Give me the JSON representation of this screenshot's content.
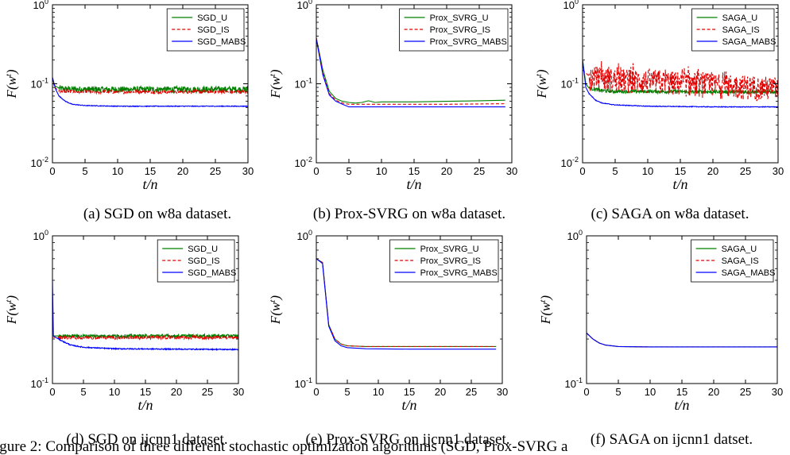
{
  "figure_caption": "igure 2: Comparison of three different stochastic optimization algorithms (SGD, Prox-SVRG a",
  "colors": {
    "U": "#008000",
    "IS": "#e00000",
    "MABS": "#0000ff",
    "axis": "#000000"
  },
  "chart_data": [
    {
      "type": "line",
      "caption": "(a) SGD on w8a dataset.",
      "xlabel": "t/n",
      "ylabel": "F(w^t)",
      "ylabel_main": "F(w",
      "ylabel_sup": "t",
      "ylabel_close": ")",
      "xlabel_text": "t/n",
      "yscale": "log",
      "xlim": [
        0,
        30
      ],
      "ylim": [
        0.01,
        1
      ],
      "xticks": [
        "0",
        "5",
        "10",
        "15",
        "20",
        "25",
        "30"
      ],
      "yticks": [
        {
          "base": "10",
          "exp": "-2"
        },
        {
          "base": "10",
          "exp": "-1"
        },
        {
          "base": "10",
          "exp": "0"
        }
      ],
      "legend": "top-right",
      "series": [
        {
          "name": "SGD_U",
          "key": "U",
          "style": "solid",
          "points": [
            [
              0,
              0.12
            ],
            [
              0.3,
              0.095
            ],
            [
              1,
              0.088
            ],
            [
              2,
              0.086
            ],
            [
              5,
              0.085
            ],
            [
              10,
              0.085
            ],
            [
              20,
              0.085
            ],
            [
              30,
              0.085
            ]
          ],
          "noise": 0.09
        },
        {
          "name": "SGD_IS",
          "key": "IS",
          "style": "dashed",
          "points": [
            [
              0,
              0.12
            ],
            [
              0.3,
              0.09
            ],
            [
              1,
              0.082
            ],
            [
              2,
              0.08
            ],
            [
              5,
              0.079
            ],
            [
              10,
              0.079
            ],
            [
              20,
              0.079
            ],
            [
              30,
              0.079
            ]
          ],
          "noise": 0.05
        },
        {
          "name": "SGD_MABS",
          "key": "MABS",
          "style": "solid",
          "points": [
            [
              0,
              0.12
            ],
            [
              0.5,
              0.085
            ],
            [
              1,
              0.07
            ],
            [
              2,
              0.06
            ],
            [
              3,
              0.055
            ],
            [
              5,
              0.053
            ],
            [
              10,
              0.052
            ],
            [
              20,
              0.052
            ],
            [
              30,
              0.052
            ]
          ],
          "noise": 0.01
        }
      ]
    },
    {
      "type": "line",
      "caption": "(b) Prox-SVRG on w8a dataset.",
      "xlabel": "t/n",
      "ylabel": "F(w^t)",
      "ylabel_main": "F(w",
      "ylabel_sup": "t",
      "ylabel_close": ")",
      "xlabel_text": "t/n",
      "yscale": "log",
      "xlim": [
        0,
        30
      ],
      "ylim": [
        0.01,
        1
      ],
      "xticks": [
        "0",
        "5",
        "10",
        "15",
        "20",
        "25",
        "30"
      ],
      "yticks": [
        {
          "base": "10",
          "exp": "-2"
        },
        {
          "base": "10",
          "exp": "-1"
        },
        {
          "base": "10",
          "exp": "0"
        }
      ],
      "legend": "top-right",
      "series": [
        {
          "name": "Prox_SVRG_U",
          "key": "U",
          "style": "solid",
          "points": [
            [
              0,
              0.38
            ],
            [
              1,
              0.15
            ],
            [
              2,
              0.08
            ],
            [
              3,
              0.065
            ],
            [
              4,
              0.06
            ],
            [
              5,
              0.058
            ],
            [
              6,
              0.057
            ],
            [
              7,
              0.058
            ],
            [
              8,
              0.061
            ],
            [
              9,
              0.058
            ],
            [
              10,
              0.059
            ],
            [
              15,
              0.059
            ],
            [
              20,
              0.06
            ],
            [
              25,
              0.061
            ],
            [
              29,
              0.062
            ]
          ],
          "noise": 0
        },
        {
          "name": "Prox_SVRG_IS",
          "key": "IS",
          "style": "dashed",
          "points": [
            [
              0,
              0.38
            ],
            [
              1,
              0.14
            ],
            [
              2,
              0.075
            ],
            [
              3,
              0.062
            ],
            [
              4,
              0.057
            ],
            [
              5,
              0.055
            ],
            [
              10,
              0.055
            ],
            [
              20,
              0.055
            ],
            [
              29,
              0.056
            ]
          ],
          "noise": 0
        },
        {
          "name": "Prox_SVRG_MABS",
          "key": "MABS",
          "style": "solid",
          "points": [
            [
              0,
              0.37
            ],
            [
              1,
              0.13
            ],
            [
              2,
              0.072
            ],
            [
              3,
              0.06
            ],
            [
              4,
              0.055
            ],
            [
              5,
              0.051
            ],
            [
              10,
              0.051
            ],
            [
              20,
              0.051
            ],
            [
              29,
              0.051
            ]
          ],
          "noise": 0
        }
      ]
    },
    {
      "type": "line",
      "caption": "(c) SAGA on w8a dataset.",
      "xlabel": "t/n",
      "ylabel": "F(w^t)",
      "ylabel_main": "F(w",
      "ylabel_sup": "t",
      "ylabel_close": ")",
      "xlabel_text": "t/n",
      "yscale": "log",
      "xlim": [
        0,
        30
      ],
      "ylim": [
        0.01,
        1
      ],
      "xticks": [
        "0",
        "5",
        "10",
        "15",
        "20",
        "25",
        "30"
      ],
      "yticks": [
        {
          "base": "10",
          "exp": "-2"
        },
        {
          "base": "10",
          "exp": "-1"
        },
        {
          "base": "10",
          "exp": "0"
        }
      ],
      "legend": "top-right",
      "series": [
        {
          "name": "SAGA_U",
          "key": "U",
          "style": "solid",
          "points": [
            [
              0,
              0.2
            ],
            [
              0.5,
              0.1
            ],
            [
              1,
              0.088
            ],
            [
              3,
              0.082
            ],
            [
              5,
              0.08
            ],
            [
              10,
              0.08
            ],
            [
              20,
              0.079
            ],
            [
              30,
              0.079
            ]
          ],
          "noise": 0.05
        },
        {
          "name": "SAGA_IS",
          "key": "IS",
          "style": "dashed",
          "points": [
            [
              0,
              0.15
            ],
            [
              1,
              0.125
            ],
            [
              5,
              0.115
            ],
            [
              10,
              0.11
            ],
            [
              20,
              0.1
            ],
            [
              30,
              0.09
            ]
          ],
          "noise": 0.35
        },
        {
          "name": "SAGA_MABS",
          "key": "MABS",
          "style": "solid",
          "points": [
            [
              0,
              0.2
            ],
            [
              0.5,
              0.09
            ],
            [
              1,
              0.075
            ],
            [
              2,
              0.062
            ],
            [
              3,
              0.057
            ],
            [
              5,
              0.054
            ],
            [
              10,
              0.052
            ],
            [
              20,
              0.051
            ],
            [
              30,
              0.051
            ]
          ],
          "noise": 0.01
        }
      ]
    },
    {
      "type": "line",
      "caption": "(d) SGD on ijcnn1 dataset.",
      "xlabel": "t/n",
      "ylabel": "F(w^t)",
      "ylabel_main": "F(w",
      "ylabel_sup": "t",
      "ylabel_close": ")",
      "xlabel_text": "t/n",
      "yscale": "log",
      "xlim": [
        0,
        30
      ],
      "ylim": [
        0.1,
        1
      ],
      "xticks": [
        "0",
        "5",
        "10",
        "15",
        "20",
        "25",
        "30"
      ],
      "yticks": [
        {
          "base": "10",
          "exp": "-1"
        },
        {
          "base": "10",
          "exp": "0"
        }
      ],
      "legend": "top-right",
      "series": [
        {
          "name": "SGD_U",
          "key": "U",
          "style": "solid",
          "points": [
            [
              0,
              0.21
            ],
            [
              1,
              0.21
            ],
            [
              10,
              0.21
            ],
            [
              30,
              0.21
            ]
          ],
          "noise": 0.025
        },
        {
          "name": "SGD_IS",
          "key": "IS",
          "style": "dashed",
          "points": [
            [
              0,
              0.205
            ],
            [
              1,
              0.205
            ],
            [
              10,
              0.205
            ],
            [
              30,
              0.205
            ]
          ],
          "noise": 0.025
        },
        {
          "name": "SGD_MABS",
          "key": "MABS",
          "style": "solid",
          "points": [
            [
              0,
              0.5
            ],
            [
              0.15,
              0.21
            ],
            [
              1,
              0.2
            ],
            [
              2,
              0.19
            ],
            [
              3,
              0.182
            ],
            [
              5,
              0.176
            ],
            [
              10,
              0.172
            ],
            [
              20,
              0.171
            ],
            [
              30,
              0.17
            ]
          ],
          "noise": 0.008
        }
      ]
    },
    {
      "type": "line",
      "caption": "(e) Prox-SVRG on ijcnn1 dataset.",
      "xlabel": "t/n",
      "ylabel": "F(w^t)",
      "ylabel_main": "F(w",
      "ylabel_sup": "t",
      "ylabel_close": ")",
      "xlabel_text": "t/n",
      "yscale": "log",
      "xlim": [
        0,
        30
      ],
      "ylim": [
        0.1,
        1
      ],
      "xticks": [
        "0",
        "5",
        "10",
        "15",
        "20",
        "25",
        "30"
      ],
      "yticks": [
        {
          "base": "10",
          "exp": "-1"
        },
        {
          "base": "10",
          "exp": "0"
        }
      ],
      "legend": "top-right",
      "series": [
        {
          "name": "Prox_SVRG_U",
          "key": "U",
          "style": "solid",
          "points": [
            [
              0,
              0.7
            ],
            [
              1,
              0.66
            ],
            [
              2,
              0.25
            ],
            [
              3,
              0.2
            ],
            [
              4,
              0.185
            ],
            [
              5,
              0.18
            ],
            [
              8,
              0.178
            ],
            [
              15,
              0.178
            ],
            [
              29,
              0.178
            ]
          ],
          "noise": 0
        },
        {
          "name": "Prox_SVRG_IS",
          "key": "IS",
          "style": "dashed",
          "points": [
            [
              0,
              0.7
            ],
            [
              1,
              0.66
            ],
            [
              2,
              0.25
            ],
            [
              3,
              0.2
            ],
            [
              4,
              0.185
            ],
            [
              5,
              0.18
            ],
            [
              8,
              0.178
            ],
            [
              15,
              0.178
            ],
            [
              29,
              0.178
            ]
          ],
          "noise": 0
        },
        {
          "name": "Prox_SVRG_MABS",
          "key": "MABS",
          "style": "solid",
          "points": [
            [
              0,
              0.7
            ],
            [
              1,
              0.65
            ],
            [
              2,
              0.245
            ],
            [
              3,
              0.195
            ],
            [
              4,
              0.18
            ],
            [
              5,
              0.175
            ],
            [
              8,
              0.172
            ],
            [
              15,
              0.171
            ],
            [
              29,
              0.171
            ]
          ],
          "noise": 0
        }
      ]
    },
    {
      "type": "line",
      "caption": "(f) SAGA on ijcnn1 datset.",
      "xlabel": "t/n",
      "ylabel": "F(w^t)",
      "ylabel_main": "F(w",
      "ylabel_sup": "t",
      "ylabel_close": ")",
      "xlabel_text": "t/n",
      "yscale": "log",
      "xlim": [
        0,
        30
      ],
      "ylim": [
        0.1,
        1
      ],
      "xticks": [
        "0",
        "5",
        "10",
        "15",
        "20",
        "25",
        "30"
      ],
      "yticks": [
        {
          "base": "10",
          "exp": "-1"
        },
        {
          "base": "10",
          "exp": "0"
        }
      ],
      "legend": "top-right",
      "series": [
        {
          "name": "SAGA_U",
          "key": "U",
          "style": "solid",
          "points": [
            [
              0,
              0.22
            ],
            [
              1,
              0.2
            ],
            [
              2,
              0.188
            ],
            [
              3,
              0.182
            ],
            [
              5,
              0.178
            ],
            [
              10,
              0.177
            ],
            [
              30,
              0.177
            ]
          ],
          "noise": 0
        },
        {
          "name": "SAGA_IS",
          "key": "IS",
          "style": "dashed",
          "points": [
            [
              0,
              0.22
            ],
            [
              1,
              0.2
            ],
            [
              2,
              0.188
            ],
            [
              3,
              0.182
            ],
            [
              5,
              0.178
            ],
            [
              10,
              0.177
            ],
            [
              30,
              0.177
            ]
          ],
          "noise": 0
        },
        {
          "name": "SAGA_MABS",
          "key": "MABS",
          "style": "solid",
          "points": [
            [
              0,
              0.22
            ],
            [
              1,
              0.2
            ],
            [
              2,
              0.188
            ],
            [
              3,
              0.182
            ],
            [
              5,
              0.178
            ],
            [
              10,
              0.177
            ],
            [
              30,
              0.177
            ]
          ],
          "noise": 0
        }
      ]
    }
  ]
}
